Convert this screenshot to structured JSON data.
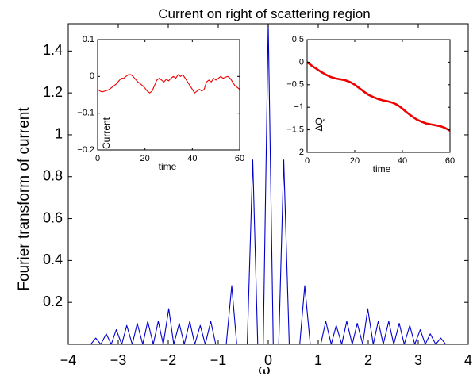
{
  "chart_data": [
    {
      "id": "main",
      "type": "line",
      "title": "Current on right of scattering region",
      "xlabel": "ω",
      "ylabel": "Fourier transform of current",
      "xlim": [
        -4,
        4
      ],
      "ylim": [
        0,
        1.53
      ],
      "xticks": [
        -4,
        -3,
        -2,
        -1,
        0,
        1,
        2,
        3,
        4
      ],
      "xtick_labels": [
        "−4",
        "−3",
        "−2",
        "−1",
        "0",
        "1",
        "2",
        "3",
        "4"
      ],
      "yticks": [
        0.2,
        0.4,
        0.6,
        0.8,
        1,
        1.2,
        1.4
      ],
      "ytick_labels": [
        "0.2",
        "0.4",
        "0.6",
        "0.8",
        "1",
        "1.2",
        "1.4"
      ],
      "grid": false,
      "series": [
        {
          "color": "#0000cc",
          "x": [
            -4.0,
            -3.55,
            -3.45,
            -3.35,
            -3.24,
            -3.14,
            -3.04,
            -2.93,
            -2.83,
            -2.72,
            -2.62,
            -2.51,
            -2.41,
            -2.3,
            -2.2,
            -2.1,
            -1.99,
            -1.89,
            -1.78,
            -1.68,
            -1.57,
            -1.47,
            -1.36,
            -1.26,
            -1.15,
            -1.05,
            -0.94,
            -0.84,
            -0.73,
            -0.63,
            -0.52,
            -0.42,
            -0.31,
            -0.21,
            -0.1,
            0.0,
            0.1,
            0.21,
            0.31,
            0.42,
            0.52,
            0.63,
            0.73,
            0.84,
            0.94,
            1.05,
            1.15,
            1.26,
            1.36,
            1.47,
            1.57,
            1.68,
            1.78,
            1.89,
            1.99,
            2.1,
            2.2,
            2.3,
            2.41,
            2.51,
            2.62,
            2.72,
            2.83,
            2.93,
            3.04,
            3.14,
            3.24,
            3.35,
            3.45,
            3.55,
            4.0
          ],
          "y": [
            0.0,
            0.0,
            0.03,
            0.0,
            0.05,
            0.0,
            0.07,
            0.0,
            0.09,
            0.0,
            0.1,
            0.0,
            0.11,
            0.0,
            0.11,
            0.0,
            0.17,
            0.0,
            0.1,
            0.0,
            0.11,
            0.0,
            0.09,
            0.0,
            0.11,
            0.0,
            0.0,
            0.0,
            0.28,
            0.0,
            0.0,
            0.0,
            0.88,
            0.0,
            0.0,
            1.53,
            0.0,
            0.0,
            0.88,
            0.0,
            0.0,
            0.0,
            0.28,
            0.0,
            0.0,
            0.0,
            0.11,
            0.0,
            0.09,
            0.0,
            0.11,
            0.0,
            0.1,
            0.0,
            0.17,
            0.0,
            0.11,
            0.0,
            0.11,
            0.0,
            0.1,
            0.0,
            0.09,
            0.0,
            0.07,
            0.0,
            0.05,
            0.0,
            0.03,
            0.0,
            0.0
          ]
        }
      ]
    },
    {
      "id": "inset_current",
      "type": "line",
      "title": "",
      "xlabel": "time",
      "ylabel": "Current",
      "xlim": [
        0,
        60
      ],
      "ylim": [
        -0.2,
        0.1
      ],
      "xticks": [
        0,
        20,
        40,
        60
      ],
      "xtick_labels": [
        "0",
        "20",
        "40",
        "60"
      ],
      "yticks": [
        -0.2,
        -0.1,
        0,
        0.1
      ],
      "ytick_labels": [
        "−0.2",
        "−0.1",
        "0",
        "0.1"
      ],
      "grid": false,
      "series": [
        {
          "color": "#ee0000",
          "x": [
            0,
            1,
            2,
            3,
            4,
            5,
            6,
            7,
            8,
            9,
            10,
            11,
            12,
            13,
            14,
            15,
            16,
            17,
            18,
            19,
            20,
            21,
            22,
            23,
            24,
            25,
            26,
            27,
            28,
            29,
            30,
            31,
            32,
            33,
            34,
            35,
            36,
            37,
            38,
            39,
            40,
            41,
            42,
            43,
            44,
            45,
            46,
            47,
            48,
            49,
            50,
            51,
            52,
            53,
            54,
            55,
            56,
            57,
            58,
            59,
            60
          ],
          "y": [
            -0.035,
            -0.04,
            -0.042,
            -0.04,
            -0.038,
            -0.035,
            -0.03,
            -0.025,
            -0.02,
            -0.012,
            -0.005,
            -0.005,
            0.0,
            0.005,
            0.005,
            0.0,
            -0.008,
            -0.015,
            -0.02,
            -0.025,
            -0.032,
            -0.04,
            -0.045,
            -0.04,
            -0.025,
            -0.01,
            -0.005,
            -0.01,
            -0.015,
            -0.008,
            -0.012,
            -0.005,
            0.0,
            -0.005,
            0.005,
            0.0,
            0.005,
            -0.005,
            -0.015,
            -0.025,
            -0.035,
            -0.045,
            -0.04,
            -0.035,
            -0.04,
            -0.035,
            -0.015,
            -0.01,
            -0.015,
            -0.005,
            -0.01,
            -0.005,
            0.0,
            -0.005,
            -0.002,
            0.0,
            -0.005,
            -0.015,
            -0.025,
            -0.03,
            -0.035
          ]
        }
      ]
    },
    {
      "id": "inset_charge",
      "type": "line",
      "title": "",
      "xlabel": "time",
      "ylabel": "ΔQ",
      "xlim": [
        0,
        60
      ],
      "ylim": [
        -2,
        0.5
      ],
      "xticks": [
        0,
        20,
        40,
        60
      ],
      "xtick_labels": [
        "0",
        "20",
        "40",
        "60"
      ],
      "yticks": [
        -2,
        -1.5,
        -1,
        -0.5,
        0,
        0.5
      ],
      "ytick_labels": [
        "−2",
        "−1.5",
        "−1",
        "−0.5",
        "0",
        "0.5"
      ],
      "grid": false,
      "series": [
        {
          "color": "#ee0000",
          "x": [
            0,
            2,
            4,
            6,
            8,
            10,
            12,
            14,
            16,
            18,
            20,
            22,
            24,
            26,
            28,
            30,
            32,
            34,
            36,
            38,
            40,
            42,
            44,
            46,
            48,
            50,
            52,
            54,
            56,
            58,
            60
          ],
          "y": [
            0.0,
            -0.08,
            -0.15,
            -0.22,
            -0.28,
            -0.33,
            -0.36,
            -0.38,
            -0.4,
            -0.44,
            -0.5,
            -0.58,
            -0.66,
            -0.73,
            -0.78,
            -0.82,
            -0.85,
            -0.87,
            -0.9,
            -0.95,
            -1.03,
            -1.12,
            -1.2,
            -1.27,
            -1.32,
            -1.36,
            -1.38,
            -1.4,
            -1.42,
            -1.46,
            -1.52
          ]
        }
      ]
    }
  ]
}
